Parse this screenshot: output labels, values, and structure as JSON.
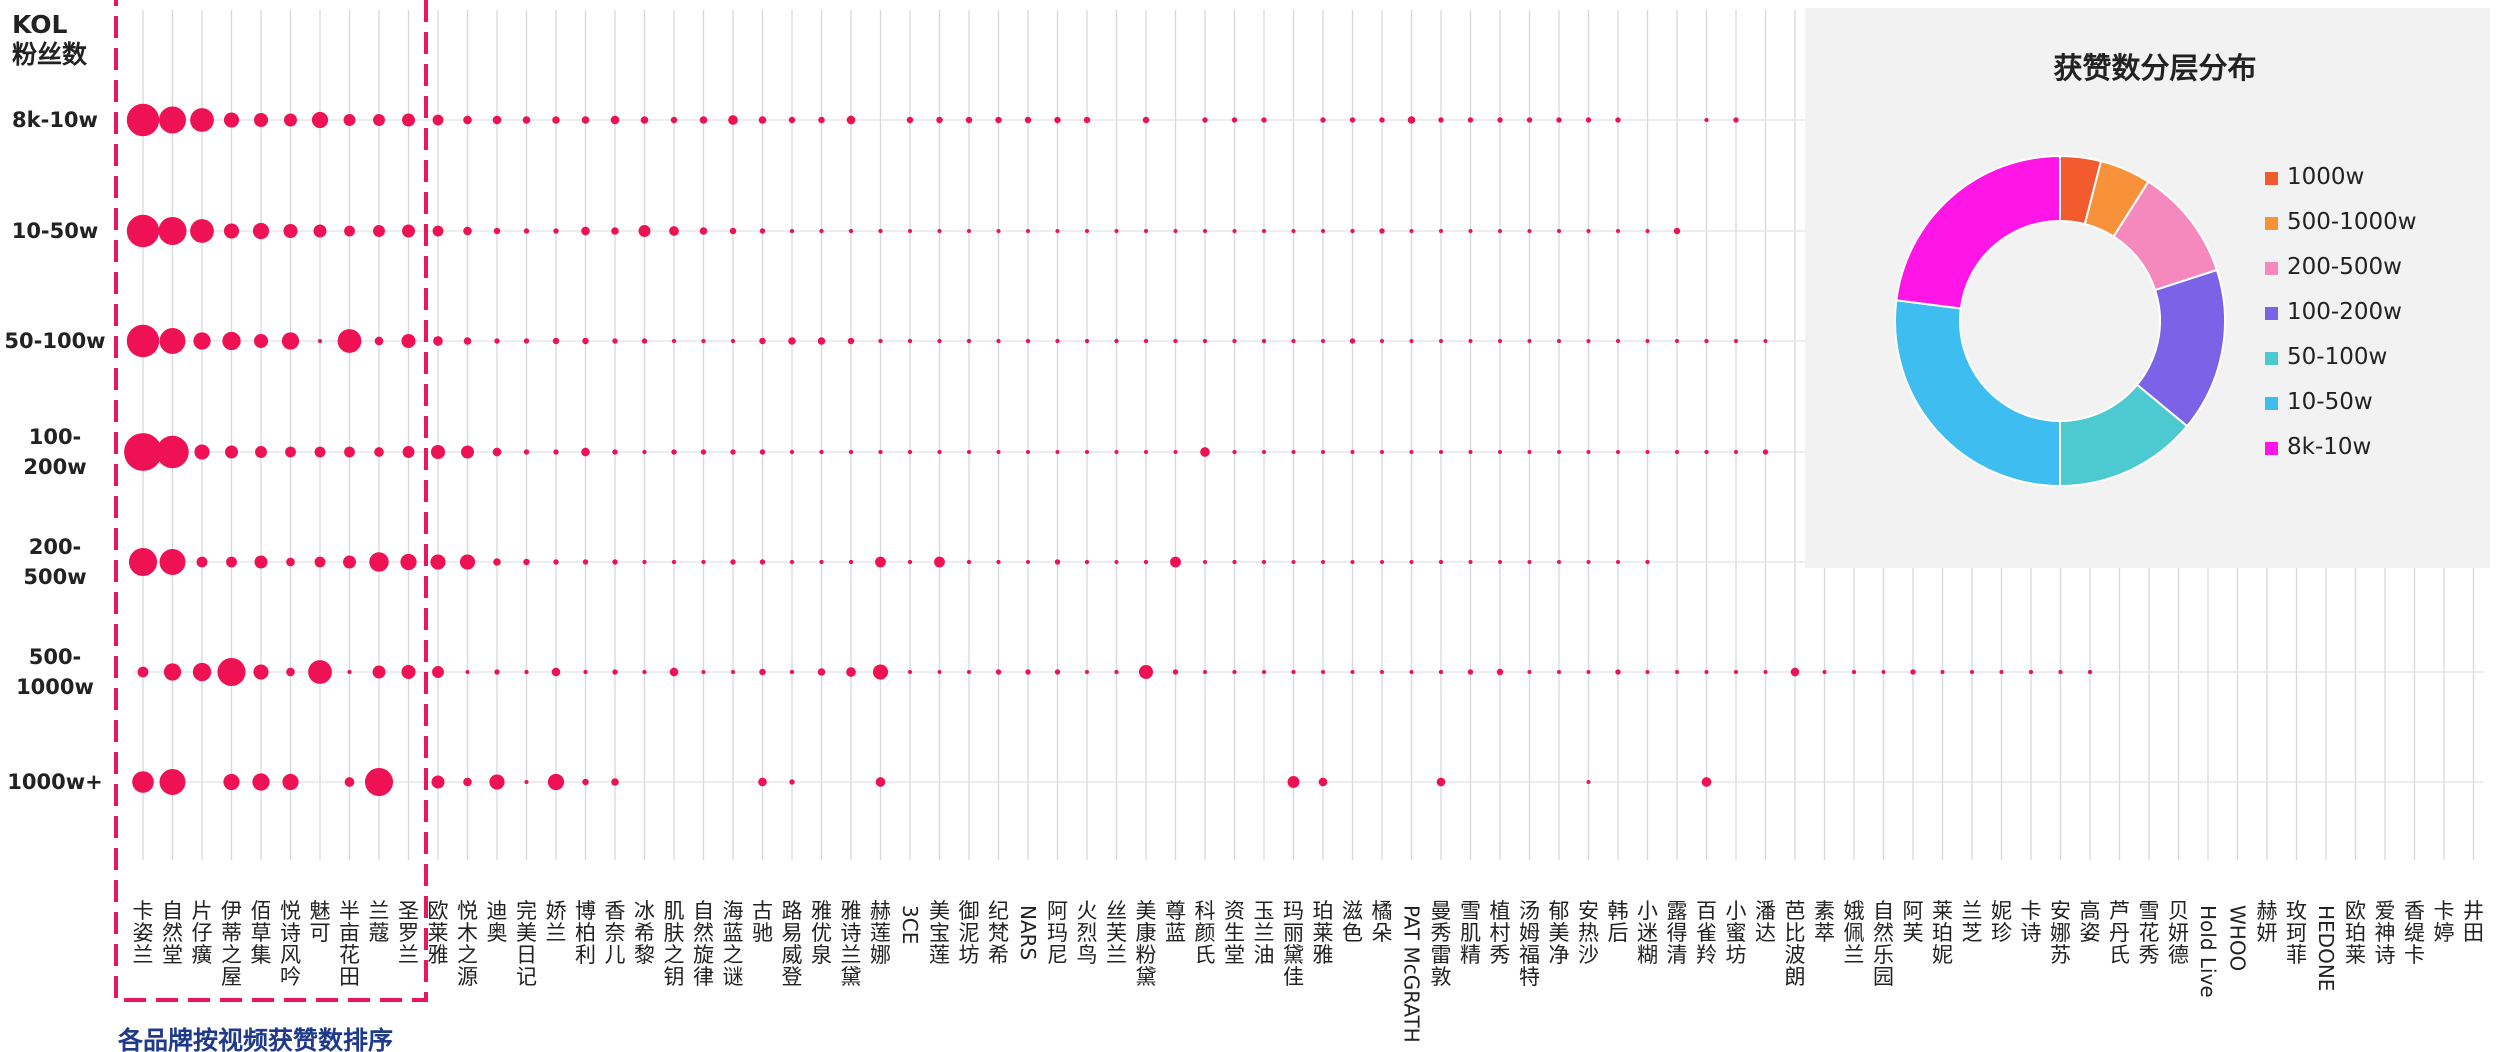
{
  "chart_data": [
    {
      "type": "scatter",
      "title": "",
      "ylabel": "KOL\n粉丝数",
      "xlabel": "各品牌按视频获赞数排序",
      "y_categories": [
        "8k-10w",
        "10-50w",
        "50-100w",
        "100-\n200w",
        "200-\n500w",
        "500-\n1000w",
        "1000w+"
      ],
      "categories": [
        "卡姿兰",
        "自然堂",
        "片仔癀",
        "伊蒂之屋",
        "佰草集",
        "悦诗风吟",
        "魅可",
        "半亩花田",
        "兰蔻",
        "圣罗兰",
        "欧莱雅",
        "悦木之源",
        "迪奥",
        "完美日记",
        "娇兰",
        "博柏利",
        "香奈儿",
        "冰希黎",
        "肌肤之钥",
        "自然旋律",
        "海蓝之谜",
        "古驰",
        "路易威登",
        "雅优泉",
        "雅诗兰黛",
        "赫莲娜",
        "3CE",
        "美宝莲",
        "御泥坊",
        "纪梵希",
        "NARS",
        "阿玛尼",
        "火烈鸟",
        "丝芙兰",
        "美康粉黛",
        "尊蓝",
        "科颜氏",
        "资生堂",
        "玉兰油",
        "玛丽黛佳",
        "珀莱雅",
        "滋色",
        "橘朵",
        "PAT McGRATH",
        "曼秀雷敦",
        "雪肌精",
        "植村秀",
        "汤姆福特",
        "郁美净",
        "安热沙",
        "韩后",
        "小迷糊",
        "露得清",
        "百雀羚",
        "小蜜坊",
        "潘达",
        "芭比波朗",
        "素萃",
        "娥佩兰",
        "自然乐园",
        "阿芙",
        "莱珀妮",
        "兰芝",
        "妮珍",
        "卡诗",
        "安娜苏",
        "高姿",
        "芦丹氏",
        "雪花秀",
        "贝妍德",
        "Hold Live",
        "WHOO",
        "赫妍",
        "玫珂菲",
        "HEDONE",
        "欧珀莱",
        "爱神诗",
        "香缇卡",
        "卡婷",
        "井田"
      ],
      "highlight_group": [
        "卡姿兰",
        "自然堂",
        "片仔癀",
        "伊蒂之屋",
        "佰草集",
        "悦诗风吟",
        "魅可",
        "半亩花田",
        "兰蔻",
        "圣罗兰"
      ],
      "point_color": "#ee1154",
      "series": [
        {
          "y": "8k-10w",
          "sizes": [
            3,
            2.5,
            2.2,
            1.4,
            1.3,
            1.2,
            1.5,
            1.1,
            1.1,
            1.2,
            1,
            0.8,
            0.8,
            0.7,
            0.7,
            0.7,
            0.8,
            0.7,
            0.6,
            0.7,
            0.9,
            0.7,
            0.6,
            0.6,
            0.8,
            0,
            0.6,
            0.6,
            0.6,
            0.6,
            0.6,
            0.6,
            0.6,
            0,
            0.6,
            0,
            0.5,
            0.5,
            0.5,
            0,
            0.5,
            0.5,
            0.5,
            0.7,
            0.5,
            0.5,
            0.5,
            0.5,
            0.5,
            0.5,
            0.5,
            0,
            0,
            0.4,
            0.5,
            0,
            0,
            0,
            0,
            0,
            0,
            0,
            0,
            0,
            0,
            0,
            0,
            0,
            0,
            0,
            0,
            0,
            0,
            0,
            0,
            0,
            0,
            0,
            0,
            0
          ]
        },
        {
          "y": "10-50w",
          "sizes": [
            3,
            2.6,
            2.2,
            1.4,
            1.5,
            1.3,
            1.2,
            1,
            1.1,
            1.2,
            1,
            0.8,
            0.6,
            0.5,
            0.5,
            0.8,
            0.7,
            1.1,
            0.9,
            0.7,
            0.6,
            0.5,
            0.4,
            0.4,
            0.4,
            0.4,
            0.3,
            0.3,
            0.3,
            0.3,
            0.3,
            0.3,
            0.3,
            0.3,
            0.3,
            0.3,
            0.3,
            0.3,
            0.3,
            0.3,
            0.3,
            0.4,
            0.5,
            0.3,
            0.3,
            0.3,
            0.3,
            0.3,
            0.3,
            0.3,
            0.3,
            0.3,
            0.6,
            0,
            0,
            0,
            0,
            0,
            0,
            0,
            0,
            0,
            0,
            0,
            0,
            0,
            0,
            0,
            0,
            0,
            0,
            0,
            0,
            0,
            0,
            0,
            0,
            0,
            0,
            0
          ]
        },
        {
          "y": "50-100w",
          "sizes": [
            3,
            2.4,
            1.6,
            1.7,
            1.3,
            1.6,
            0.3,
            2.2,
            0.8,
            1.3,
            0.9,
            0.7,
            0.5,
            0.5,
            0.6,
            0.6,
            0.5,
            0.5,
            0.4,
            0.4,
            0.4,
            0.6,
            0.7,
            0.7,
            0.6,
            0.4,
            0.4,
            0.4,
            0.4,
            0.4,
            0.4,
            0.4,
            0.4,
            0.4,
            0.4,
            0.4,
            0.4,
            0.4,
            0.4,
            0.4,
            0.3,
            0.5,
            0.3,
            0.3,
            0.3,
            0.3,
            0.3,
            0.3,
            0.3,
            0.3,
            0.3,
            0.3,
            0.3,
            0.4,
            0.3,
            0.3,
            0,
            0,
            0,
            0,
            0,
            0,
            0,
            0,
            0,
            0,
            0,
            0,
            0,
            0,
            0,
            0,
            0,
            0,
            0,
            0,
            0,
            0,
            0,
            0
          ]
        },
        {
          "y": "100-\n200w",
          "sizes": [
            3.5,
            3,
            1.4,
            1.2,
            1.1,
            1,
            1,
            1,
            0.9,
            1.1,
            1.3,
            1.2,
            0.8,
            0.5,
            0.5,
            0.8,
            0.5,
            0.4,
            0.5,
            0.5,
            0.5,
            0.5,
            0.4,
            0.4,
            0.4,
            0.4,
            0.4,
            0.4,
            0.3,
            0.3,
            0.3,
            0.3,
            0.3,
            0.3,
            0.3,
            0.3,
            0.9,
            0.4,
            0.3,
            0.3,
            0.3,
            0.3,
            0.3,
            0.3,
            0.3,
            0.3,
            0.3,
            0.3,
            0.3,
            0.3,
            0.3,
            0.3,
            0.3,
            0.4,
            0.3,
            0.5,
            0,
            0,
            0,
            0,
            0,
            0,
            0,
            0,
            0,
            0,
            0,
            0,
            0,
            0,
            0,
            0,
            0,
            0,
            0,
            0,
            0,
            0,
            0,
            0
          ]
        },
        {
          "y": "200-\n500w",
          "sizes": [
            2.6,
            2.4,
            1,
            1,
            1.2,
            0.8,
            1,
            1.2,
            1.8,
            1.5,
            1.4,
            1.4,
            0.7,
            0.6,
            0.5,
            0.5,
            0.5,
            0.4,
            0.4,
            0.4,
            0.5,
            0.5,
            0.4,
            0.4,
            0.4,
            1,
            0.4,
            1,
            0.4,
            0.4,
            0.3,
            0.5,
            0.4,
            0.3,
            0.4,
            1,
            0.3,
            0.4,
            0.4,
            0.3,
            0.3,
            0.3,
            0.3,
            0.3,
            0.4,
            0.3,
            0.3,
            0.3,
            0.3,
            0.3,
            0.3,
            0.4,
            0,
            0,
            0,
            0,
            0,
            0,
            0,
            0,
            0,
            0,
            0,
            0,
            0,
            0,
            0,
            0,
            0,
            0,
            0,
            0,
            0,
            0,
            0,
            0,
            0,
            0,
            0,
            0
          ]
        },
        {
          "y": "500-\n1000w",
          "sizes": [
            1,
            1.6,
            1.7,
            2.6,
            1.4,
            0.8,
            2.2,
            0.4,
            1.2,
            1.3,
            1.1,
            0.3,
            0.5,
            0.4,
            0.8,
            0.4,
            0.5,
            0.4,
            0.8,
            0.3,
            0.3,
            0.6,
            0.4,
            0.7,
            0.9,
            1.4,
            0.3,
            0.3,
            0.3,
            0.5,
            0.5,
            0.5,
            0.3,
            0.4,
            1.3,
            0.5,
            0.3,
            0.4,
            0.3,
            0.4,
            0.3,
            0.3,
            0.3,
            0.3,
            0.4,
            0.5,
            0.6,
            0.3,
            0.3,
            0.3,
            0.5,
            0.3,
            0.3,
            0.3,
            0.3,
            0.3,
            0.8,
            0.3,
            0.4,
            0.3,
            0.5,
            0.3,
            0.3,
            0.3,
            0.4,
            0.4,
            0.4,
            0,
            0,
            0,
            0,
            0,
            0,
            0,
            0,
            0,
            0,
            0,
            0,
            0
          ]
        },
        {
          "y": "1000w+",
          "sizes": [
            2,
            2.4,
            0,
            1.5,
            1.6,
            1.5,
            0,
            0.9,
            2.6,
            0,
            1.2,
            0.8,
            1.4,
            0.3,
            1.5,
            0.6,
            0.7,
            0,
            0,
            0,
            0,
            0.8,
            0.5,
            0,
            0,
            0.9,
            0,
            0,
            0,
            0,
            0,
            0,
            0,
            0,
            0,
            0,
            0,
            0,
            0,
            1.1,
            0.8,
            0,
            0,
            0,
            0.8,
            0,
            0,
            0,
            0,
            0.3,
            0,
            0,
            0,
            0.9,
            0,
            0,
            0,
            0,
            0,
            0,
            0,
            0,
            0,
            0,
            0,
            0,
            0,
            0,
            0,
            0,
            0,
            0,
            0,
            0,
            0,
            0,
            0,
            0,
            0,
            0
          ]
        }
      ],
      "grid": true,
      "legend": "none"
    },
    {
      "type": "pie",
      "title": "获赞数分层分布",
      "donut": true,
      "legend": "right",
      "labels": [
        "1000w",
        "500-1000w",
        "200-500w",
        "100-200w",
        "50-100w",
        "10-50w",
        "8k-10w"
      ],
      "values": [
        4,
        5,
        11,
        16,
        14,
        27,
        23
      ],
      "colors": [
        "#f15b2e",
        "#f7913a",
        "#f589bd",
        "#7b63e8",
        "#4cc9d1",
        "#3dbdf0",
        "#ff16e6"
      ]
    }
  ]
}
